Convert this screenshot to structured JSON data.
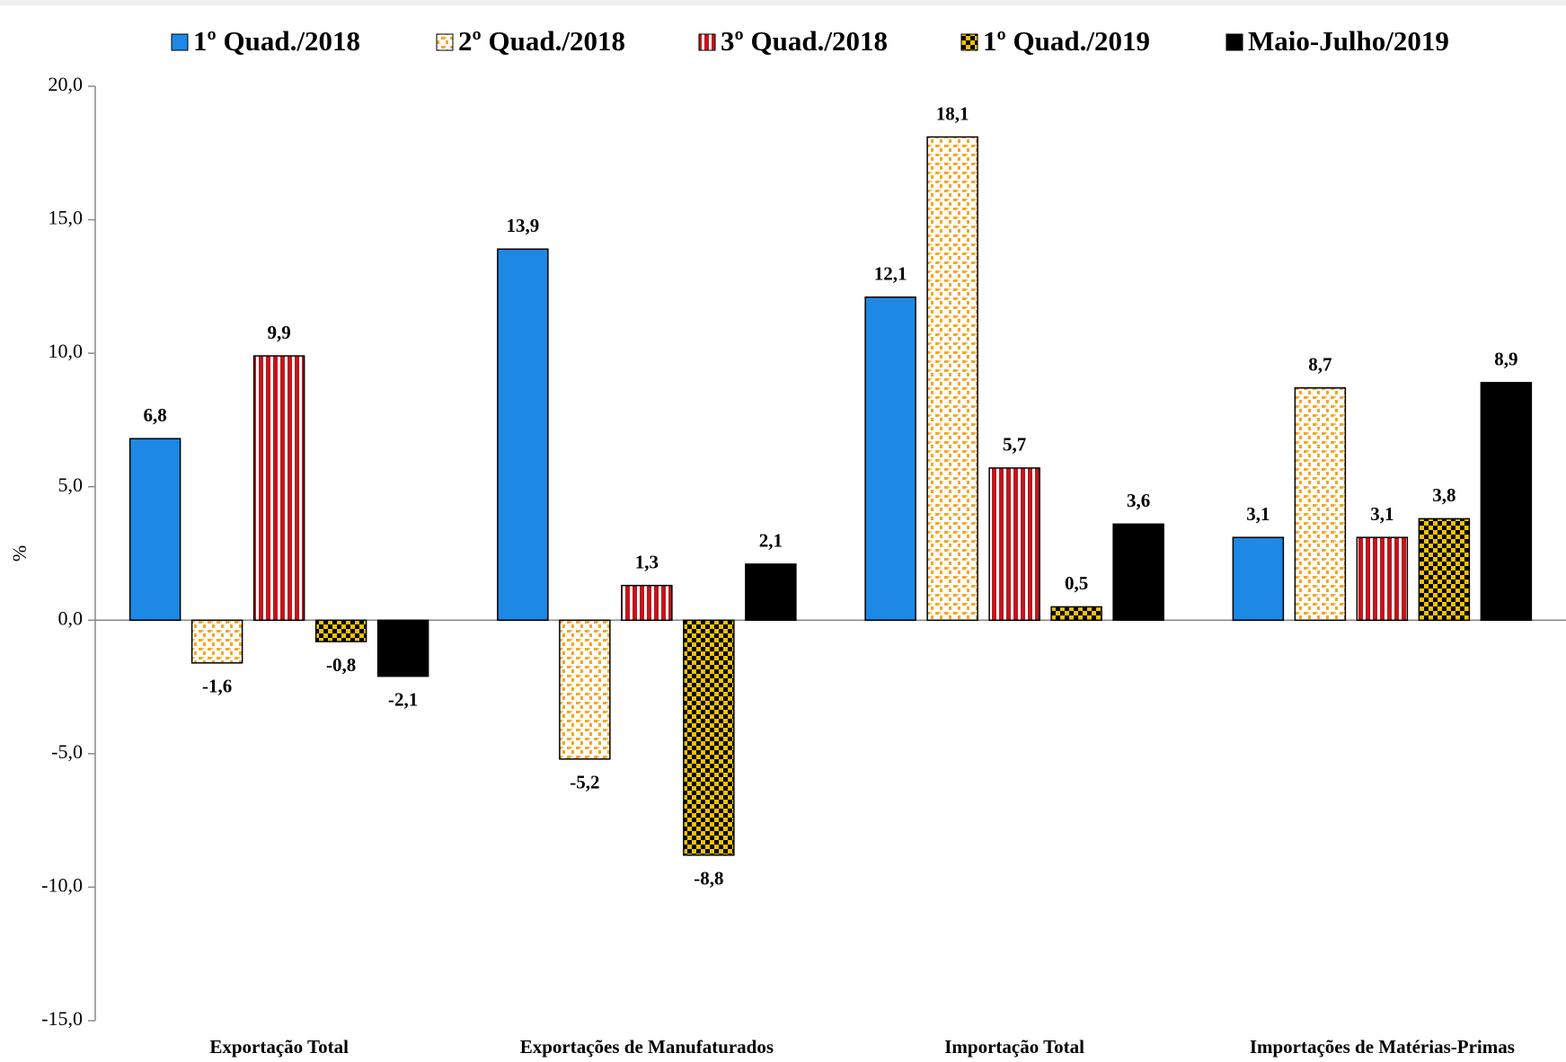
{
  "chart_data": {
    "type": "bar",
    "y_label": "%",
    "categories": [
      "Exportação Total",
      "Exportações de Manufaturados",
      "Importação Total",
      "Importações de Matérias-Primas"
    ],
    "series": [
      {
        "name": "1º Quad./2018",
        "color": "#1e88e5",
        "pattern": "solid",
        "values": [
          6.8,
          13.9,
          12.1,
          3.1
        ],
        "value_labels": [
          "6,8",
          "13,9",
          "12,1",
          "3,1"
        ]
      },
      {
        "name": "2º Quad./2018",
        "color": "#f5a623",
        "pattern": "dots",
        "values": [
          -1.6,
          -5.2,
          18.1,
          8.7
        ],
        "value_labels": [
          "-1,6",
          "-5,2",
          "18,1",
          "8,7"
        ]
      },
      {
        "name": "3º Quad./2018",
        "color": "#c0161c",
        "pattern": "stripes",
        "values": [
          9.9,
          1.3,
          5.7,
          3.1
        ],
        "value_labels": [
          "9,9",
          "1,3",
          "5,7",
          "3,1"
        ]
      },
      {
        "name": "1º Quad./2019",
        "color": "#f2c200",
        "pattern": "checker",
        "values": [
          -0.8,
          -8.8,
          0.5,
          3.8
        ],
        "value_labels": [
          "-0,8",
          "-8,8",
          "0,5",
          "3,8"
        ]
      },
      {
        "name": "Maio-Julho/2019",
        "color": "#000000",
        "pattern": "solid",
        "values": [
          -2.1,
          2.1,
          3.6,
          8.9
        ],
        "value_labels": [
          "-2,1",
          "2,1",
          "3,6",
          "8,9"
        ]
      }
    ],
    "ylim": [
      -15,
      20
    ],
    "yticks": [
      {
        "value": -15,
        "label": "-15,0"
      },
      {
        "value": -10,
        "label": "-10,0"
      },
      {
        "value": -5,
        "label": "-5,0"
      },
      {
        "value": 0,
        "label": "0,0"
      },
      {
        "value": 5,
        "label": "5,0"
      },
      {
        "value": 10,
        "label": "10,0"
      },
      {
        "value": 15,
        "label": "15,0"
      },
      {
        "value": 20,
        "label": "20,0"
      }
    ],
    "grid": false,
    "legend": "top"
  }
}
